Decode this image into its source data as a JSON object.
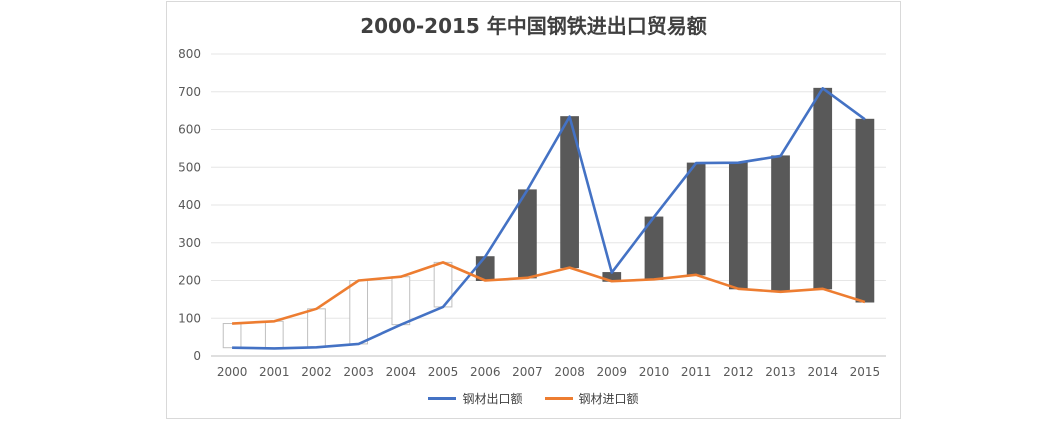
{
  "chart_data": {
    "type": "line",
    "title": "2000-2015 年中国钢铁进出口贸易额",
    "xlabel": "",
    "ylabel": "",
    "ylim": [
      0,
      800
    ],
    "yticks": [
      0,
      100,
      200,
      300,
      400,
      500,
      600,
      700,
      800
    ],
    "categories": [
      "2000",
      "2001",
      "2002",
      "2003",
      "2004",
      "2005",
      "2006",
      "2007",
      "2008",
      "2009",
      "2010",
      "2011",
      "2012",
      "2013",
      "2014",
      "2015"
    ],
    "series": [
      {
        "name": "钢材出口额",
        "color": "#4472c4",
        "values": [
          22,
          20,
          23,
          32,
          83,
          130,
          263,
          440,
          634,
          221,
          368,
          511,
          512,
          530,
          709,
          627
        ]
      },
      {
        "name": "钢材进口额",
        "color": "#ed7d31",
        "values": [
          86,
          92,
          125,
          200,
          210,
          248,
          200,
          207,
          234,
          198,
          203,
          215,
          178,
          170,
          178,
          143
        ]
      }
    ],
    "updown_bars": {
      "up_color": "#ffffff",
      "down_color": "#595959",
      "border_color": "#bfbfbf"
    },
    "grid": true,
    "legend_position": "bottom"
  }
}
